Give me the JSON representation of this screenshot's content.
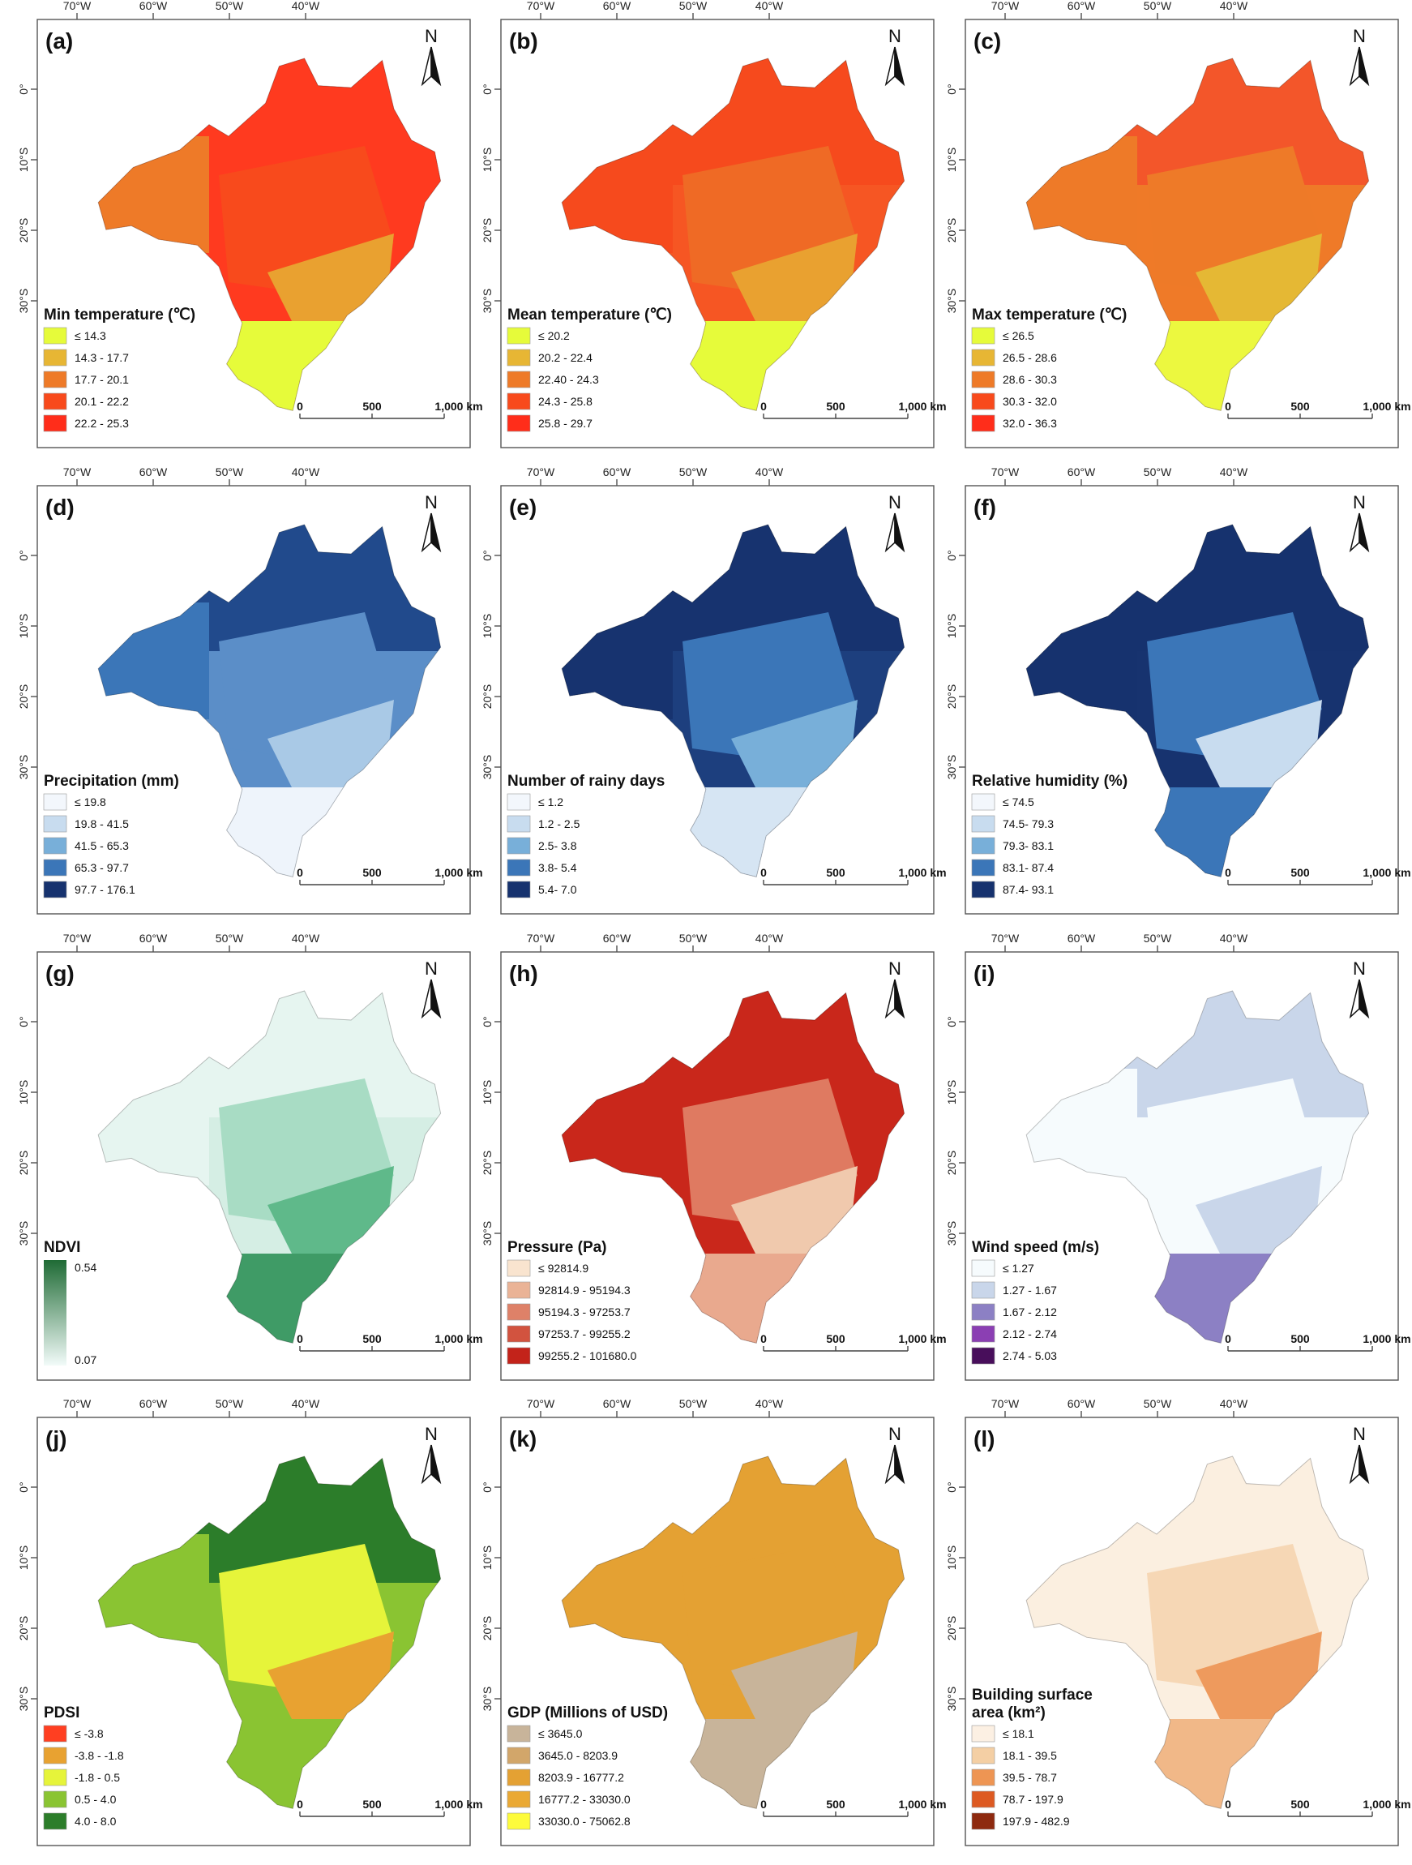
{
  "figure": {
    "lon_ticks": [
      "70°W",
      "60°W",
      "50°W",
      "40°W"
    ],
    "lat_ticks": [
      "0°",
      "10°S",
      "20°S",
      "30°S"
    ],
    "north_label": "N",
    "scale_labels": [
      "0",
      "500",
      "1,000 km"
    ],
    "panels": [
      {
        "label": "(a)",
        "title": "Min temperature (℃)",
        "base_color": "#ff3a1f",
        "regions": {
          "north": "#ff3a1f",
          "center": "#f84a1c",
          "southeast": "#e9a130",
          "south": "#e6fb3a",
          "west": "#ee7a28"
        },
        "legend_type": "classes",
        "classes": [
          {
            "label": "≤ 14.3",
            "color": "#e6fb3a"
          },
          {
            "label": "14.3 - 17.7",
            "color": "#e7b634"
          },
          {
            "label": "17.7 - 20.1",
            "color": "#ee7a28"
          },
          {
            "label": "20.1 - 22.2",
            "color": "#f84a1c"
          },
          {
            "label": "22.2 - 25.3",
            "color": "#ff2d1a"
          }
        ]
      },
      {
        "label": "(b)",
        "title": "Mean temperature (℃)",
        "base_color": "#f65623",
        "regions": {
          "north": "#f64a1d",
          "center": "#ef6a25",
          "southeast": "#e9a130",
          "south": "#e6fb3a",
          "west": "#f64a1d"
        },
        "legend_type": "classes",
        "classes": [
          {
            "label": "≤ 20.2",
            "color": "#e6fb3a"
          },
          {
            "label": "20.2 - 22.4",
            "color": "#e7b634"
          },
          {
            "label": "22.40 - 24.3",
            "color": "#ee7a28"
          },
          {
            "label": "24.3 - 25.8",
            "color": "#f84a1c"
          },
          {
            "label": "25.8 - 29.7",
            "color": "#ff2d1a"
          }
        ]
      },
      {
        "label": "(c)",
        "title": "Max temperature (℃)",
        "base_color": "#ef7a28",
        "regions": {
          "north": "#f3562a",
          "center": "#ee7a28",
          "southeast": "#e5b834",
          "south": "#ecf83f",
          "west": "#ee7a28"
        },
        "legend_type": "classes",
        "classes": [
          {
            "label": "≤ 26.5",
            "color": "#e6fb3a"
          },
          {
            "label": "26.5 - 28.6",
            "color": "#e7b634"
          },
          {
            "label": "28.6 - 30.3",
            "color": "#ee7a28"
          },
          {
            "label": "30.3 - 32.0",
            "color": "#f84a1c"
          },
          {
            "label": "32.0 - 36.3",
            "color": "#ff2d1a"
          }
        ]
      },
      {
        "label": "(d)",
        "title": "Precipitation (mm)",
        "base_color": "#5b8ec8",
        "regions": {
          "north": "#214a8c",
          "center": "#5b8ec8",
          "southeast": "#a9c9e6",
          "south": "#eef4fb",
          "west": "#3b76b8"
        },
        "legend_type": "classes",
        "classes": [
          {
            "label": "≤ 19.8",
            "color": "#f3f7fc"
          },
          {
            "label": "19.8 - 41.5",
            "color": "#c8dcef"
          },
          {
            "label": "41.5 - 65.3",
            "color": "#78afd9"
          },
          {
            "label": "65.3 - 97.7",
            "color": "#3b76b8"
          },
          {
            "label": "97.7 - 176.1",
            "color": "#16326e"
          }
        ]
      },
      {
        "label": "(e)",
        "title": "Number of rainy days",
        "base_color": "#1d3f7e",
        "regions": {
          "north": "#17336f",
          "center": "#3b76b8",
          "southeast": "#78afd9",
          "south": "#d6e5f3",
          "west": "#17336f"
        },
        "legend_type": "classes",
        "classes": [
          {
            "label": "≤ 1.2",
            "color": "#f3f7fc"
          },
          {
            "label": "1.2 - 2.5",
            "color": "#c8dcef"
          },
          {
            "label": "2.5- 3.8",
            "color": "#78afd9"
          },
          {
            "label": "3.8- 5.4",
            "color": "#3b76b8"
          },
          {
            "label": "5.4- 7.0",
            "color": "#16326e"
          }
        ]
      },
      {
        "label": "(f)",
        "title": "Relative humidity (%)",
        "base_color": "#17336f",
        "regions": {
          "north": "#16326e",
          "center": "#3b76b8",
          "southeast": "#c8dcef",
          "south": "#3b76b8",
          "west": "#16326e"
        },
        "legend_type": "classes",
        "classes": [
          {
            "label": "≤ 74.5",
            "color": "#f3f7fc"
          },
          {
            "label": "74.5- 79.3",
            "color": "#c8dcef"
          },
          {
            "label": "79.3- 83.1",
            "color": "#78afd9"
          },
          {
            "label": "83.1- 87.4",
            "color": "#3b76b8"
          },
          {
            "label": "87.4- 93.1",
            "color": "#16326e"
          }
        ]
      },
      {
        "label": "(g)",
        "title": "NDVI",
        "base_color": "#d5eee4",
        "regions": {
          "north": "#e6f5f0",
          "center": "#a8dcc4",
          "southeast": "#5fb98a",
          "south": "#3f9b66",
          "west": "#e6f5f0"
        },
        "legend_type": "gradient",
        "gradient": {
          "max_label": "0.54",
          "min_label": "0.07",
          "max_color": "#1f6b35",
          "min_color": "#f2fbf9"
        }
      },
      {
        "label": "(h)",
        "title": "Pressure (Pa)",
        "base_color": "#c9271b",
        "regions": {
          "north": "#c9271b",
          "center": "#df7a61",
          "southeast": "#f0c9ad",
          "south": "#e9a98e",
          "west": "#c9271b"
        },
        "legend_type": "classes",
        "classes": [
          {
            "label": "≤ 92814.9",
            "color": "#f9e4cf"
          },
          {
            "label": "92814.9 - 95194.3",
            "color": "#eab396"
          },
          {
            "label": "95194.3 - 97253.7",
            "color": "#de8168"
          },
          {
            "label": "97253.7 - 99255.2",
            "color": "#d2533f"
          },
          {
            "label": "99255.2 - 101680.0",
            "color": "#c3231a"
          }
        ]
      },
      {
        "label": "(i)",
        "title": "Wind speed (m/s)",
        "base_color": "#f6fbfd",
        "regions": {
          "north": "#c9d6ea",
          "center": "#f6fbfd",
          "southeast": "#c9d6ea",
          "south": "#8c80c4",
          "west": "#f6fbfd"
        },
        "legend_type": "classes",
        "classes": [
          {
            "label": "≤ 1.27",
            "color": "#f6fbfd"
          },
          {
            "label": "1.27 - 1.67",
            "color": "#c9d6ea"
          },
          {
            "label": "1.67 - 2.12",
            "color": "#8c80c4"
          },
          {
            "label": "2.12 - 2.74",
            "color": "#8b3fb3"
          },
          {
            "label": "2.74 - 5.03",
            "color": "#480e5b"
          }
        ]
      },
      {
        "label": "(j)",
        "title": "PDSI",
        "base_color": "#8ac432",
        "regions": {
          "north": "#2c7d2a",
          "center": "#e6f43a",
          "southeast": "#e8a231",
          "south": "#8ac432",
          "west": "#8ac432"
        },
        "legend_type": "classes",
        "classes": [
          {
            "label": "≤ -3.8",
            "color": "#ff3f21"
          },
          {
            "label": "-3.8 - -1.8",
            "color": "#e8a231"
          },
          {
            "label": "-1.8 - 0.5",
            "color": "#e6f43a"
          },
          {
            "label": "0.5 - 4.0",
            "color": "#8ac432"
          },
          {
            "label": "4.0 - 8.0",
            "color": "#2c7d2a"
          }
        ]
      },
      {
        "label": "(k)",
        "title": "GDP (Millions of USD)",
        "base_color": "#e4a133",
        "regions": {
          "north": "#e4a133",
          "center": "#e4a133",
          "southeast": "#c8b49a",
          "south": "#c8b49a",
          "west": "#e4a133"
        },
        "legend_type": "classes",
        "classes": [
          {
            "label": "≤ 3645.0",
            "color": "#c8b49a"
          },
          {
            "label": "3645.0 - 8203.9",
            "color": "#d2a66a"
          },
          {
            "label": "8203.9 - 16777.2",
            "color": "#e4a133"
          },
          {
            "label": "16777.2 - 33030.0",
            "color": "#eaa934"
          },
          {
            "label": "33030.0 - 75062.8",
            "color": "#fdfb3b"
          }
        ]
      },
      {
        "label": "(l)",
        "title": "Building surface",
        "title2": "area (km²)",
        "base_color": "#fbefe0",
        "regions": {
          "north": "#fbefe0",
          "center": "#f6d7b5",
          "southeast": "#ee9a5d",
          "south": "#f1b888",
          "west": "#fbefe0"
        },
        "legend_type": "classes",
        "classes": [
          {
            "label": "≤ 18.1",
            "color": "#fcf0e3"
          },
          {
            "label": "18.1 - 39.5",
            "color": "#f4cfa4"
          },
          {
            "label": "39.5 - 78.7",
            "color": "#ee9553"
          },
          {
            "label": "78.7 - 197.9",
            "color": "#dd5a22"
          },
          {
            "label": "197.9 - 482.9",
            "color": "#8e2a0f"
          }
        ]
      }
    ]
  }
}
